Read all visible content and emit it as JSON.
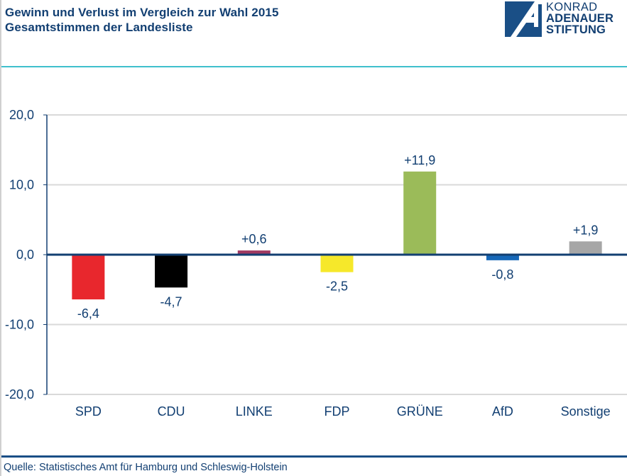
{
  "header": {
    "title_line1": "Gewinn und Verlust im Vergleich zur Wahl 2015",
    "title_line2": "Gesamtstimmen der Landesliste"
  },
  "logo": {
    "line1": "KONRAD",
    "line2": "ADENAUER",
    "line3": "STIFTUNG",
    "color": "#1a4f86"
  },
  "footer": {
    "source": "Quelle: Statistisches Amt für Hamburg und Schleswig-Holstein"
  },
  "chart_data": {
    "type": "bar",
    "title": "Gewinn und Verlust im Vergleich zur Wahl 2015 – Gesamtstimmen der Landesliste",
    "xlabel": "",
    "ylabel": "",
    "categories": [
      "SPD",
      "CDU",
      "LINKE",
      "FDP",
      "GRÜNE",
      "AfD",
      "Sonstige"
    ],
    "values": [
      -6.4,
      -4.7,
      0.6,
      -2.5,
      11.9,
      -0.8,
      1.9
    ],
    "data_labels": [
      "-6,4",
      "-4,7",
      "+0,6",
      "-2,5",
      "+11,9",
      "-0,8",
      "+1,9"
    ],
    "colors": [
      "#e8272d",
      "#000000",
      "#a03a62",
      "#f6e82a",
      "#9bbb59",
      "#1668b8",
      "#a6a6a6"
    ],
    "ylim": [
      -20,
      20
    ],
    "yticks": [
      20,
      10,
      0,
      -10,
      -20
    ],
    "ytick_labels": [
      "20,0",
      "10,0",
      "0,0",
      "-10,0",
      "-20,0"
    ],
    "grid": true,
    "legend": "none",
    "zero_line_color": "#123f72"
  }
}
